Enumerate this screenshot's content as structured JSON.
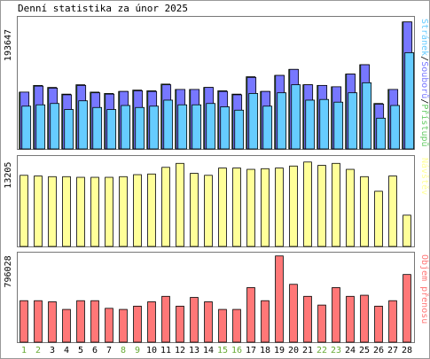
{
  "title": "Denní statistika za únor 2025",
  "x_labels": [
    "1",
    "2",
    "3",
    "4",
    "5",
    "6",
    "7",
    "8",
    "9",
    "10",
    "11",
    "12",
    "13",
    "14",
    "15",
    "16",
    "17",
    "18",
    "19",
    "20",
    "21",
    "22",
    "23",
    "24",
    "25",
    "26",
    "27",
    "28"
  ],
  "weekend_days": [
    "1",
    "2",
    "8",
    "9",
    "15",
    "16",
    "22",
    "23"
  ],
  "colors": {
    "background": "#ffffff",
    "panel_border": "#777777",
    "hits": "#66ccff",
    "files": "#7777ff",
    "accesses": "#66cc66",
    "visits": "#ffff99",
    "volume": "#ff7777",
    "weekend_label": "#66aa33",
    "weekday_label": "#000000"
  },
  "chart_data": [
    {
      "type": "bar",
      "name": "top",
      "ymax_label": "193647",
      "ylim": [
        0,
        193647
      ],
      "legend_parts": [
        {
          "text": "Stránek",
          "color": "#66ccff"
        },
        {
          "text": "/",
          "color": "#000000"
        },
        {
          "text": "Souborů",
          "color": "#7777ff"
        },
        {
          "text": "/",
          "color": "#000000"
        },
        {
          "text": "Přístupů",
          "color": "#66cc66"
        }
      ],
      "series": [
        {
          "key": "hits",
          "values": [
            85000,
            95000,
            92000,
            82000,
            96000,
            85000,
            83000,
            86000,
            88000,
            87000,
            97000,
            89000,
            89000,
            92000,
            87000,
            82000,
            108000,
            86000,
            110000,
            119000,
            96000,
            95000,
            93000,
            112000,
            126000,
            68000,
            89000,
            190000
          ]
        },
        {
          "key": "files",
          "values": [
            85000,
            94000,
            91000,
            81000,
            95000,
            84000,
            82000,
            86000,
            87000,
            86000,
            96000,
            89000,
            89000,
            92000,
            86000,
            81000,
            107000,
            86000,
            110000,
            119000,
            96000,
            95000,
            93000,
            112000,
            126000,
            67000,
            89000,
            190000
          ]
        },
        {
          "key": "pages",
          "values": [
            64000,
            66000,
            68000,
            59000,
            72000,
            62000,
            59000,
            65000,
            62000,
            64000,
            73000,
            66000,
            66000,
            68000,
            63000,
            58000,
            83000,
            64000,
            84000,
            96000,
            73000,
            74000,
            70000,
            84000,
            99000,
            46000,
            65000,
            144000
          ]
        }
      ]
    },
    {
      "type": "bar",
      "name": "middle",
      "ymax_label": "13205",
      "ylim": [
        0,
        13205
      ],
      "legend_parts": [
        {
          "text": "Návštěv",
          "color": "#ffff99"
        }
      ],
      "series": [
        {
          "key": "visits",
          "values": [
            10700,
            10600,
            10500,
            10500,
            10400,
            10400,
            10400,
            10500,
            10800,
            10900,
            11900,
            12500,
            11000,
            10700,
            11800,
            11800,
            11600,
            11700,
            11800,
            12100,
            12700,
            12200,
            12500,
            11600,
            10500,
            8300,
            10600,
            4700
          ]
        }
      ]
    },
    {
      "type": "bar",
      "name": "bottom",
      "ymax_label": "796028",
      "ylim": [
        0,
        796028
      ],
      "legend_parts": [
        {
          "text": "Objem přenosu",
          "color": "#ff7777"
        }
      ],
      "series": [
        {
          "key": "volume",
          "values": [
            380000,
            380000,
            370000,
            300000,
            380000,
            380000,
            310000,
            300000,
            330000,
            370000,
            420000,
            330000,
            410000,
            370000,
            300000,
            300000,
            500000,
            380000,
            790000,
            530000,
            420000,
            340000,
            500000,
            420000,
            430000,
            330000,
            380000,
            620000
          ]
        }
      ]
    }
  ]
}
